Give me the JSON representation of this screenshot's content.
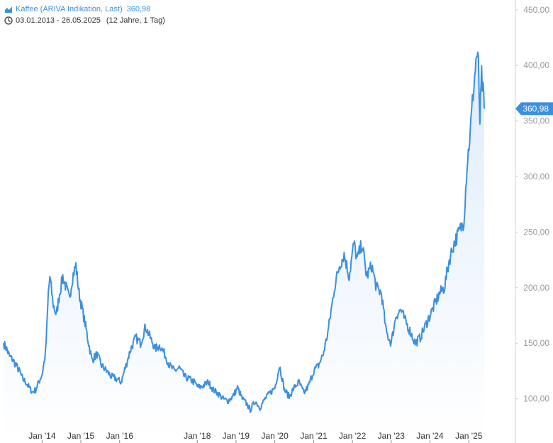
{
  "legend": {
    "series_label": "Kaffee (ARIVA Indikation, Last)",
    "series_value": "360,98",
    "date_range": "03.01.2013 - 26.05.2025",
    "range_extra": "(12 Jahre, 1 Tag)",
    "series_icon": "area-chart-icon",
    "range_icon": "clock-icon"
  },
  "chart_data": {
    "type": "area",
    "series": [
      {
        "name": "Kaffee (ARIVA Indikation, Last)",
        "color": "#3a8fe0",
        "x": [
          "2013-01-03",
          "2013-02-01",
          "2013-03-01",
          "2013-04-01",
          "2013-05-01",
          "2013-06-01",
          "2013-07-01",
          "2013-08-01",
          "2013-09-01",
          "2013-10-01",
          "2013-11-01",
          "2013-12-01",
          "2014-01-01",
          "2014-02-01",
          "2014-02-15",
          "2014-03-01",
          "2014-03-15",
          "2014-04-15",
          "2014-05-15",
          "2014-06-15",
          "2014-07-15",
          "2014-08-15",
          "2014-09-15",
          "2014-10-15",
          "2014-11-15",
          "2014-12-15",
          "2015-01-15",
          "2015-02-15",
          "2015-03-15",
          "2015-04-15",
          "2015-06-01",
          "2015-07-15",
          "2015-09-01",
          "2015-10-15",
          "2015-12-01",
          "2016-01-15",
          "2016-03-01",
          "2016-04-15",
          "2016-06-01",
          "2016-07-15",
          "2016-09-01",
          "2016-10-15",
          "2016-12-01",
          "2017-01-15",
          "2017-03-01",
          "2017-04-15",
          "2017-06-01",
          "2017-07-15",
          "2017-09-01",
          "2017-10-15",
          "2017-12-01",
          "2018-01-15",
          "2018-03-01",
          "2018-04-15",
          "2018-06-01",
          "2018-07-15",
          "2018-09-01",
          "2018-10-15",
          "2018-12-01",
          "2019-01-15",
          "2019-03-01",
          "2019-04-15",
          "2019-05-15",
          "2019-07-01",
          "2019-08-15",
          "2019-10-01",
          "2019-11-15",
          "2020-01-01",
          "2020-02-15",
          "2020-04-01",
          "2020-05-15",
          "2020-07-01",
          "2020-08-15",
          "2020-10-01",
          "2020-11-15",
          "2021-01-01",
          "2021-02-15",
          "2021-04-01",
          "2021-05-15",
          "2021-07-01",
          "2021-07-15",
          "2021-09-01",
          "2021-10-15",
          "2021-12-01",
          "2022-01-15",
          "2022-02-15",
          "2022-04-01",
          "2022-05-15",
          "2022-07-01",
          "2022-08-15",
          "2022-10-01",
          "2022-11-15",
          "2023-01-01",
          "2023-02-15",
          "2023-04-01",
          "2023-05-15",
          "2023-07-01",
          "2023-08-15",
          "2023-10-01",
          "2023-11-15",
          "2024-01-01",
          "2024-02-15",
          "2024-04-01",
          "2024-05-15",
          "2024-07-01",
          "2024-08-15",
          "2024-10-01",
          "2024-11-15",
          "2024-12-15",
          "2025-01-15",
          "2025-02-10",
          "2025-02-25",
          "2025-03-15",
          "2025-04-01",
          "2025-04-15",
          "2025-05-01",
          "2025-05-15",
          "2025-05-26"
        ],
        "y": [
          150,
          145,
          138,
          135,
          130,
          125,
          118,
          115,
          110,
          106,
          108,
          115,
          122,
          140,
          165,
          195,
          210,
          185,
          175,
          195,
          210,
          200,
          190,
          210,
          220,
          195,
          180,
          165,
          150,
          135,
          140,
          130,
          125,
          120,
          118,
          115,
          130,
          145,
          155,
          150,
          165,
          155,
          145,
          148,
          140,
          130,
          125,
          128,
          120,
          118,
          115,
          110,
          112,
          115,
          108,
          105,
          100,
          98,
          102,
          110,
          100,
          95,
          90,
          98,
          92,
          100,
          105,
          110,
          130,
          108,
          102,
          110,
          115,
          105,
          112,
          125,
          130,
          140,
          160,
          190,
          200,
          220,
          230,
          210,
          240,
          225,
          240,
          210,
          220,
          200,
          195,
          160,
          150,
          175,
          180,
          170,
          160,
          150,
          155,
          165,
          175,
          185,
          195,
          200,
          225,
          240,
          250,
          260,
          310,
          340,
          375,
          390,
          410,
          400,
          350,
          390,
          375,
          361
        ],
        "ylim": [
          80,
          455
        ]
      }
    ],
    "x_ticks": [
      {
        "label": "Jan '14",
        "date": "2014-01-01"
      },
      {
        "label": "Jan '15",
        "date": "2015-01-01"
      },
      {
        "label": "Jan '16",
        "date": "2016-01-01"
      },
      {
        "label": "Jan '18",
        "date": "2018-01-01"
      },
      {
        "label": "Jan '19",
        "date": "2019-01-01"
      },
      {
        "label": "Jan '20",
        "date": "2020-01-01"
      },
      {
        "label": "Jan '21",
        "date": "2021-01-01"
      },
      {
        "label": "Jan '22",
        "date": "2022-01-01"
      },
      {
        "label": "Jan '23",
        "date": "2023-01-01"
      },
      {
        "label": "Jan '24",
        "date": "2024-01-01"
      },
      {
        "label": "Jan '25",
        "date": "2025-01-01"
      }
    ],
    "y_ticks": [
      {
        "label": "100,00",
        "value": 100
      },
      {
        "label": "150,00",
        "value": 150
      },
      {
        "label": "200,00",
        "value": 200
      },
      {
        "label": "250,00",
        "value": 250
      },
      {
        "label": "300,00",
        "value": 300
      },
      {
        "label": "350,00",
        "value": 350
      },
      {
        "label": "400,00",
        "value": 400
      },
      {
        "label": "450,00",
        "value": 450
      }
    ],
    "last_value": {
      "label": "360,98",
      "value": 360.98
    },
    "x_range": [
      "2013-01-03",
      "2025-05-26"
    ],
    "y_axis_position": "right",
    "grid": false,
    "line_color": "#3a8fe0",
    "fill_color": "#dcebfb",
    "axis_color": "#d0d0d0",
    "tick_text_color": "#999999"
  }
}
